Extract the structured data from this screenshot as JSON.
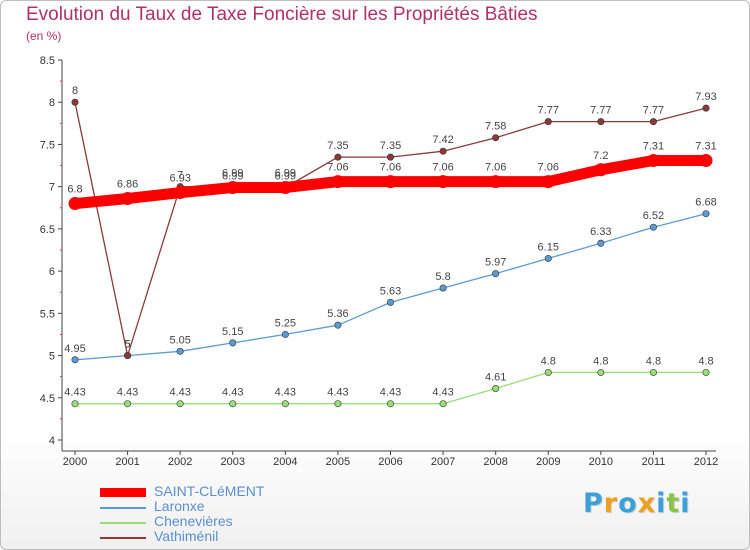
{
  "chart_data": {
    "type": "line",
    "title": "Evolution du Taux de Taxe Foncière sur les Propriétés Bâties",
    "subtitle": "(en %)",
    "xlabel": "",
    "ylabel": "(en %)",
    "categories": [
      "2000",
      "2001",
      "2002",
      "2003",
      "2004",
      "2005",
      "2006",
      "2007",
      "2008",
      "2009",
      "2010",
      "2011",
      "2012"
    ],
    "ylim": [
      4,
      8.5
    ],
    "yticks": [
      "4",
      "4.5",
      "5",
      "5.5",
      "6",
      "6.5",
      "7",
      "7.5",
      "8",
      "8.5"
    ],
    "grid": false,
    "legend_position": "bottom-left",
    "series": [
      {
        "name": "SAINT-CLéMENT",
        "color": "#ff0000",
        "values": [
          6.8,
          6.86,
          6.93,
          6.99,
          6.99,
          7.06,
          7.06,
          7.06,
          7.06,
          7.06,
          7.2,
          7.31,
          7.31
        ],
        "labels": [
          "6.8",
          "6.86",
          "6.93",
          "6.99",
          "6.99",
          "7.06",
          "7.06",
          "7.06",
          "7.06",
          "7.06",
          "7.2",
          "7.31",
          "7.31"
        ]
      },
      {
        "name": "Laronxe",
        "color": "#5b9bd5",
        "values": [
          4.95,
          5,
          5.05,
          5.15,
          5.25,
          5.36,
          5.63,
          5.8,
          5.97,
          6.15,
          6.33,
          6.52,
          6.68
        ],
        "labels": [
          "4.95",
          "5",
          "5.05",
          "5.15",
          "5.25",
          "5.36",
          "5.63",
          "5.8",
          "5.97",
          "6.15",
          "6.33",
          "6.52",
          "6.68"
        ]
      },
      {
        "name": "Chenevières",
        "color": "#99dd77",
        "values": [
          4.43,
          4.43,
          4.43,
          4.43,
          4.43,
          4.43,
          4.43,
          4.43,
          4.61,
          4.8,
          4.8,
          4.8,
          4.8
        ],
        "labels": [
          "4.43",
          "4.43",
          "4.43",
          "4.43",
          "4.43",
          "4.43",
          "4.43",
          "4.43",
          "4.61",
          "4.8",
          "4.8",
          "4.8",
          "4.8"
        ]
      },
      {
        "name": "Vathiménil",
        "color": "#8b3a3a",
        "values": [
          8,
          5,
          7,
          6.99,
          6.99,
          7.35,
          7.35,
          7.42,
          7.58,
          7.77,
          7.77,
          7.77,
          7.93
        ],
        "labels": [
          "8",
          "5",
          "7",
          "6.99",
          "6.99",
          "7.35",
          "7.35",
          "7.42",
          "7.58",
          "7.77",
          "7.77",
          "7.77",
          "7.93"
        ]
      }
    ]
  },
  "logo": {
    "letters": [
      "P",
      "r",
      "o",
      "x",
      "i",
      "t",
      "i"
    ],
    "colors": [
      "#3aa0d8",
      "#f0a020",
      "#3aa0d8",
      "#f0a020",
      "#3aa0d8",
      "#8bc34a",
      "#3aa0d8"
    ]
  }
}
